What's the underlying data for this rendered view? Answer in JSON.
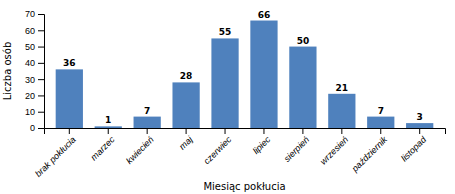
{
  "chart_data": {
    "type": "bar",
    "categories": [
      "brak pokłucia",
      "marzec",
      "kwiecień",
      "maj",
      "czerwiec",
      "lipiec",
      "sierpień",
      "wrzesień",
      "październik",
      "listopad"
    ],
    "values": [
      36,
      1,
      7,
      28,
      55,
      66,
      50,
      21,
      7,
      3
    ],
    "color": "#4f81bd",
    "xlabel": "Miesiąc pokłucia",
    "ylabel": "Liczba osób",
    "ylim": [
      0,
      70
    ],
    "yticks": [
      0,
      10,
      20,
      30,
      40,
      50,
      60,
      70
    ],
    "grid": false,
    "data_labels": true
  }
}
